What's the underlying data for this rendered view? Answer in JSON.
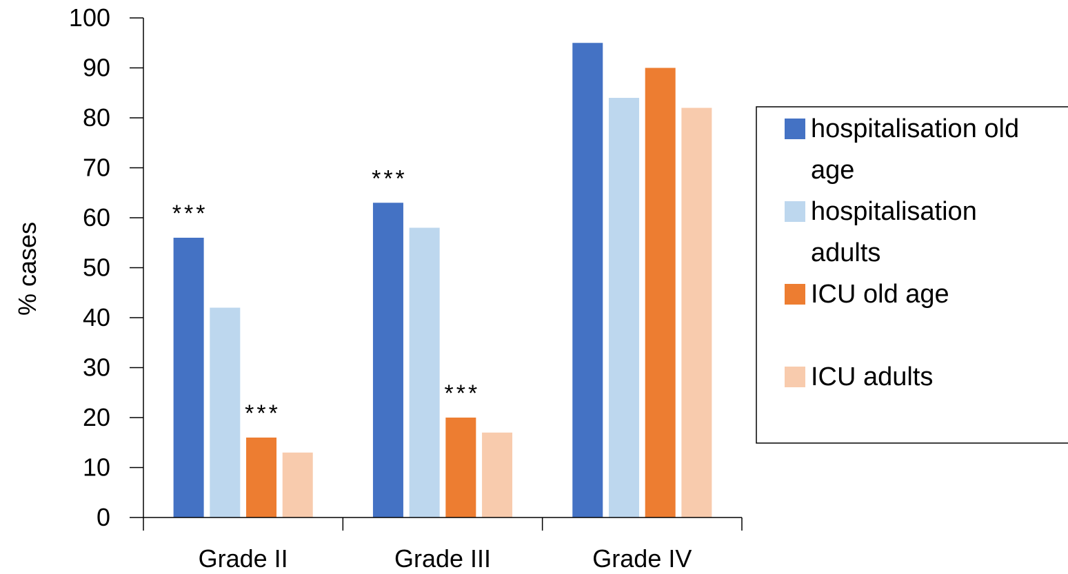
{
  "chart_data": {
    "type": "bar",
    "ylabel": "% cases",
    "ylim": [
      0,
      100
    ],
    "y_ticks": [
      "0",
      "10",
      "20",
      "30",
      "40",
      "50",
      "60",
      "70",
      "80",
      "90",
      "100"
    ],
    "categories": [
      "Grade II",
      "Grade III",
      "Grade IV"
    ],
    "series": [
      {
        "name": "hospitalisation old age",
        "legend_lines": [
          "hospitalisation old",
          "age"
        ],
        "color": "#4472C4",
        "values": [
          56,
          63,
          95
        ]
      },
      {
        "name": "hospitalisation adults",
        "legend_lines": [
          "hospitalisation",
          "adults"
        ],
        "color": "#BDD7EE",
        "values": [
          42,
          58,
          84
        ]
      },
      {
        "name": "ICU old age",
        "legend_lines": [
          "ICU old age"
        ],
        "color": "#ED7D31",
        "values": [
          16,
          20,
          90
        ]
      },
      {
        "name": "ICU adults",
        "legend_lines": [
          "ICU adults"
        ],
        "color": "#F8CBAD",
        "values": [
          13,
          17,
          82
        ]
      }
    ],
    "annotations": [
      {
        "text": "***",
        "category": 0,
        "series": 0
      },
      {
        "text": "***",
        "category": 0,
        "series": 2
      },
      {
        "text": "***",
        "category": 1,
        "series": 0
      },
      {
        "text": "***",
        "category": 1,
        "series": 2
      }
    ],
    "legend_position": "right",
    "grid": false
  }
}
